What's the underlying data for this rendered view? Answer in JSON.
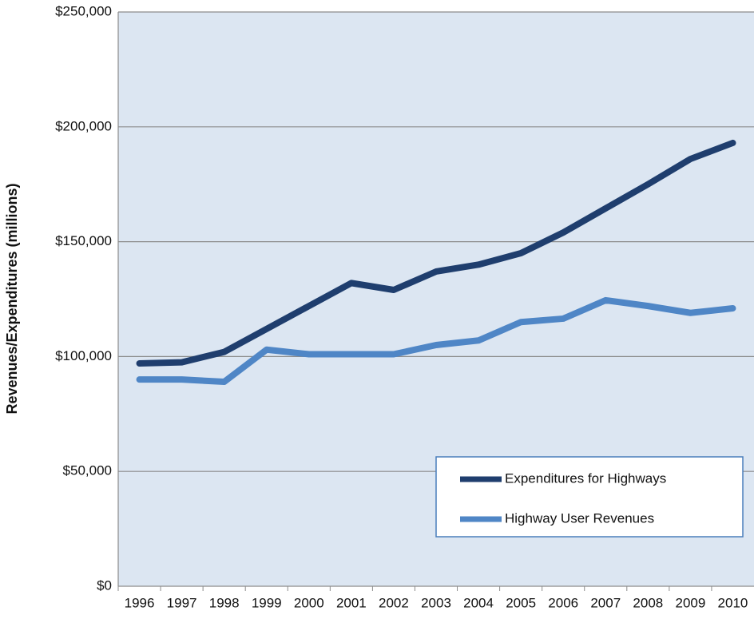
{
  "chart_data": {
    "type": "line",
    "ylabel": "Revenues/Expenditures (millions)",
    "categories": [
      "1996",
      "1997",
      "1998",
      "1999",
      "2000",
      "2001",
      "2002",
      "2003",
      "2004",
      "2005",
      "2006",
      "2007",
      "2008",
      "2009",
      "2010"
    ],
    "series": [
      {
        "name": "Expenditures for Highways",
        "color": "#1f3e6e",
        "values": [
          97000,
          97500,
          102000,
          112000,
          122000,
          132000,
          129000,
          137000,
          140000,
          145000,
          154000,
          164500,
          175000,
          186000,
          193000
        ]
      },
      {
        "name": "Highway User Revenues",
        "color": "#4f86c6",
        "values": [
          90000,
          90000,
          89000,
          103000,
          101000,
          101000,
          101000,
          105000,
          107000,
          115000,
          116500,
          124500,
          122000,
          119000,
          121000
        ]
      }
    ],
    "ylim": [
      0,
      250000
    ],
    "yticks": [
      {
        "value": 0,
        "label": "$0"
      },
      {
        "value": 50000,
        "label": "$50,000"
      },
      {
        "value": 100000,
        "label": "$100,000"
      },
      {
        "value": 150000,
        "label": "$150,000"
      },
      {
        "value": 200000,
        "label": "$200,000"
      },
      {
        "value": 250000,
        "label": "$250,000"
      }
    ],
    "grid": true,
    "legend": "lower right"
  }
}
